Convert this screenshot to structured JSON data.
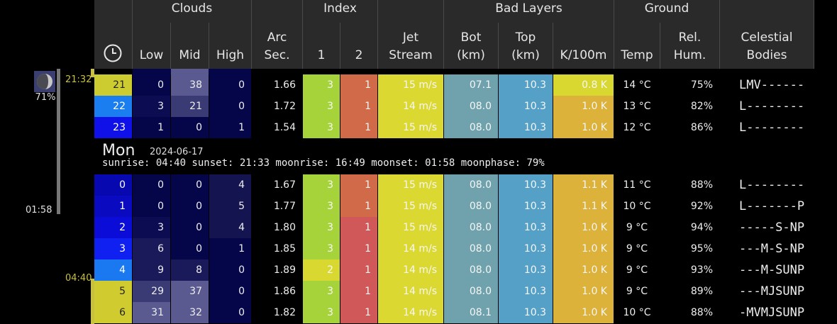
{
  "header": {
    "groups": {
      "clouds": "Clouds",
      "index": "Index",
      "bad_layers": "Bad Layers",
      "ground": "Ground"
    },
    "columns": {
      "low": "Low",
      "mid": "Mid",
      "high": "High",
      "arc_1": "Arc",
      "arc_2": "Sec.",
      "idx1": "1",
      "idx2": "2",
      "jet_1": "Jet",
      "jet_2": "Stream",
      "bot_1": "Bot",
      "bot_2": "(km)",
      "top_1": "Top",
      "top_2": "(km)",
      "k100m": "K/100m",
      "temp": "Temp",
      "hum_1": "Rel.",
      "hum_2": "Hum.",
      "cel_1": "Celestial",
      "cel_2": "Bodies"
    },
    "clock_icon": "clock-icon"
  },
  "sidebar": {
    "moon_icon": "moon-phase-icon",
    "moon_percent": "71%",
    "moonset_time": "01:58",
    "sunset_time": "21:32",
    "sunrise_time": "04:40"
  },
  "day": {
    "name": "Mon",
    "date": "2024-06-17",
    "info": "sunrise: 04:40 sunset: 21:33 moonrise: 16:49 moonset: 01:58 moonphase: 79%"
  },
  "rows_before": [
    {
      "hour": "21",
      "low": "0",
      "mid": "38",
      "high": "0",
      "arc": "1.66",
      "i1": "3",
      "i2": "1",
      "jet": "15 m/s",
      "bot": "07.1",
      "top": "10.3",
      "k": "0.8 K",
      "temp": "14 °C",
      "hum": "75%",
      "cel": "LMV------"
    },
    {
      "hour": "22",
      "low": "3",
      "mid": "21",
      "high": "0",
      "arc": "1.72",
      "i1": "3",
      "i2": "1",
      "jet": "14 m/s",
      "bot": "08.0",
      "top": "10.3",
      "k": "1.0 K",
      "temp": "13 °C",
      "hum": "82%",
      "cel": "L--------"
    },
    {
      "hour": "23",
      "low": "1",
      "mid": "0",
      "high": "1",
      "arc": "1.54",
      "i1": "3",
      "i2": "1",
      "jet": "15 m/s",
      "bot": "08.0",
      "top": "10.3",
      "k": "1.0 K",
      "temp": "12 °C",
      "hum": "86%",
      "cel": "L--------"
    }
  ],
  "rows_after": [
    {
      "hour": "0",
      "low": "0",
      "mid": "0",
      "high": "4",
      "arc": "1.67",
      "i1": "3",
      "i2": "1",
      "jet": "15 m/s",
      "bot": "08.0",
      "top": "10.3",
      "k": "1.1 K",
      "temp": "11 °C",
      "hum": "88%",
      "cel": "L--------"
    },
    {
      "hour": "1",
      "low": "0",
      "mid": "0",
      "high": "5",
      "arc": "1.77",
      "i1": "3",
      "i2": "1",
      "jet": "15 m/s",
      "bot": "08.0",
      "top": "10.3",
      "k": "1.1 K",
      "temp": "10 °C",
      "hum": "92%",
      "cel": "L-------P"
    },
    {
      "hour": "2",
      "low": "3",
      "mid": "0",
      "high": "4",
      "arc": "1.80",
      "i1": "3",
      "i2": "1",
      "jet": "15 m/s",
      "bot": "08.0",
      "top": "10.3",
      "k": "1.0 K",
      "temp": "9 °C",
      "hum": "94%",
      "cel": "-----S-NP"
    },
    {
      "hour": "3",
      "low": "6",
      "mid": "0",
      "high": "1",
      "arc": "1.85",
      "i1": "3",
      "i2": "1",
      "jet": "14 m/s",
      "bot": "08.0",
      "top": "10.3",
      "k": "1.0 K",
      "temp": "9 °C",
      "hum": "95%",
      "cel": "---M-S-NP"
    },
    {
      "hour": "4",
      "low": "9",
      "mid": "8",
      "high": "0",
      "arc": "1.89",
      "i1": "2",
      "i2": "1",
      "jet": "14 m/s",
      "bot": "08.0",
      "top": "10.3",
      "k": "1.0 K",
      "temp": "9 °C",
      "hum": "93%",
      "cel": "---M-SUNP"
    },
    {
      "hour": "5",
      "low": "29",
      "mid": "37",
      "high": "0",
      "arc": "1.86",
      "i1": "3",
      "i2": "1",
      "jet": "14 m/s",
      "bot": "08.0",
      "top": "10.3",
      "k": "1.0 K",
      "temp": "9 °C",
      "hum": "89%",
      "cel": "---MJSUNP"
    },
    {
      "hour": "6",
      "low": "31",
      "mid": "32",
      "high": "0",
      "arc": "1.82",
      "i1": "3",
      "i2": "1",
      "jet": "14 m/s",
      "bot": "08.1",
      "top": "10.3",
      "k": "1.0 K",
      "temp": "10 °C",
      "hum": "88%",
      "cel": "-MVMJSUNP"
    }
  ],
  "colors": {
    "background": "#000000",
    "header_bg": "#2a2a2a",
    "header_line": "#4a4a4a",
    "jet": "#dcd832",
    "bot": "#6fa2ac",
    "top": "#55a0c6",
    "k_yellow": "#d8d830",
    "k_orange": "#dcb23a",
    "index1_green": "#a6d23a",
    "index1_yellow": "#d8d830",
    "marker": "#c8c040"
  }
}
